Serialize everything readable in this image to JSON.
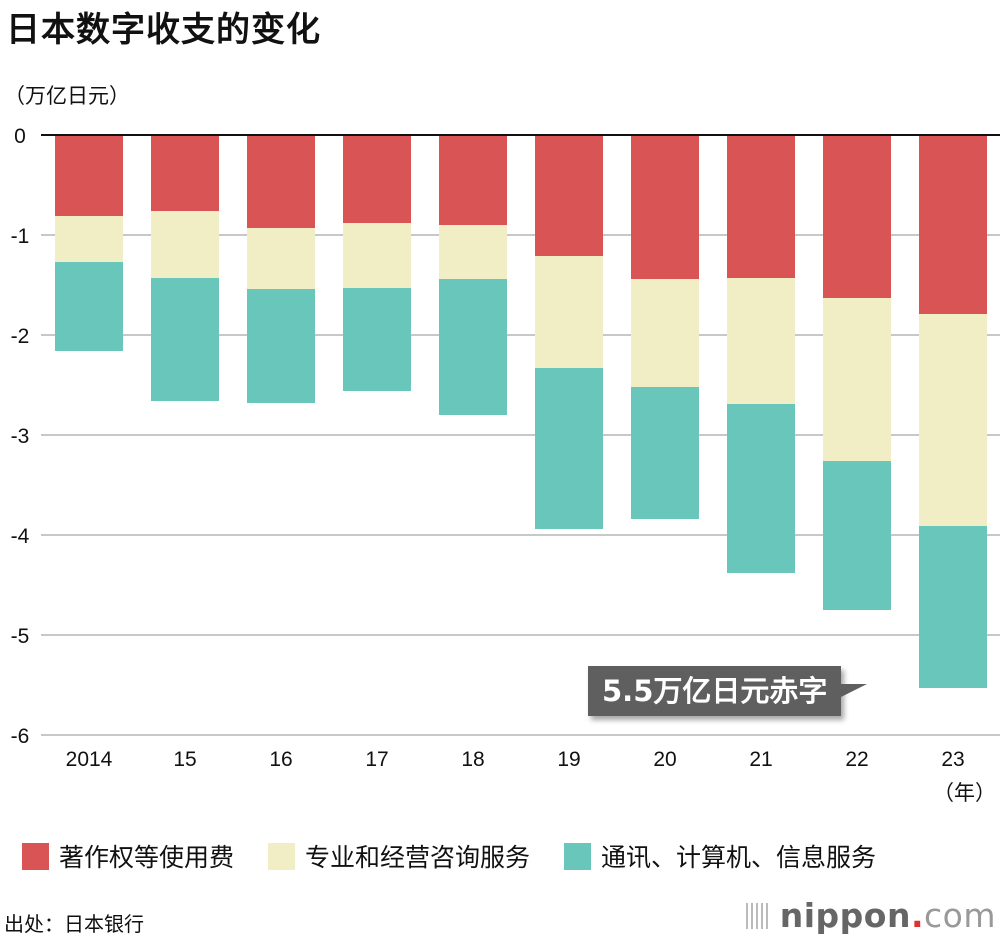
{
  "chart_data": {
    "type": "bar",
    "stacked": true,
    "title": "日本数字收支的变化",
    "ylabel": "（万亿日元）",
    "xlabel": "（年）",
    "categories": [
      "2014",
      "15",
      "16",
      "17",
      "18",
      "19",
      "20",
      "21",
      "22",
      "23"
    ],
    "ylim": [
      -6,
      0
    ],
    "yticks": [
      0,
      -1,
      -2,
      -3,
      -4,
      -5,
      -6
    ],
    "grid": true,
    "legend_position": "bottom",
    "series": [
      {
        "name": "著作权等使用费",
        "color": "#d95555",
        "values": [
          -0.81,
          -0.76,
          -0.93,
          -0.88,
          -0.9,
          -1.21,
          -1.44,
          -1.43,
          -1.63,
          -1.79
        ]
      },
      {
        "name": "专业和经营咨询服务",
        "color": "#f1eec6",
        "values": [
          -0.46,
          -0.67,
          -0.61,
          -0.65,
          -0.54,
          -1.12,
          -1.08,
          -1.26,
          -1.63,
          -2.12
        ]
      },
      {
        "name": "通讯、计算机、信息服务",
        "color": "#69c6ba",
        "values": [
          -0.89,
          -1.23,
          -1.14,
          -1.03,
          -1.36,
          -1.61,
          -1.32,
          -1.69,
          -1.49,
          -1.62
        ]
      }
    ],
    "annotation": "5.5万亿日元赤字"
  },
  "source": "出处：日本银行",
  "logo": {
    "name": "nippon",
    "dot": ".",
    "tld": "com"
  }
}
